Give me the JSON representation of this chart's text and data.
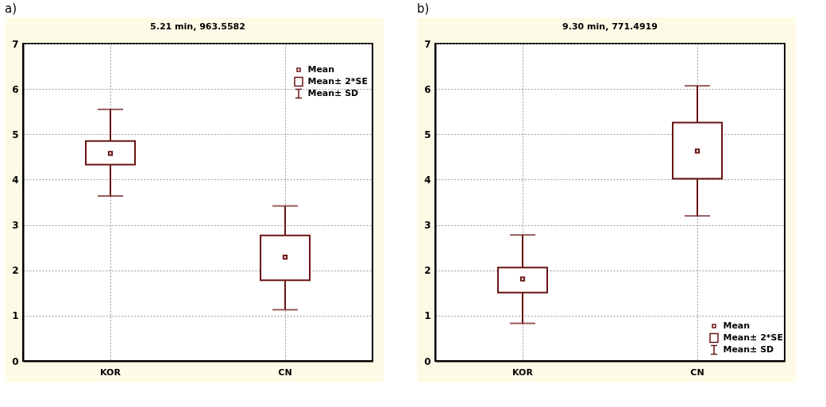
{
  "chart_data": [
    {
      "type": "box",
      "subtitle": "a)",
      "title": "5.21 min, 963.5582",
      "categories": [
        "KOR",
        "CN"
      ],
      "color": "#6b1414",
      "boxes": [
        {
          "low": 3.64,
          "q1": 4.33,
          "q3": 4.85,
          "high": 5.55,
          "mean": 4.58
        },
        {
          "low": 1.13,
          "q1": 1.78,
          "q3": 2.77,
          "high": 3.42,
          "mean": 2.29
        }
      ],
      "ylim": [
        0,
        7
      ],
      "yticks": [
        0,
        1,
        2,
        3,
        4,
        5,
        6,
        7
      ],
      "grid": true,
      "annotations": [
        "Mean",
        "Mean± 2*SE",
        "Mean± SD"
      ]
    },
    {
      "type": "box",
      "subtitle": "b)",
      "title": "9.30 min, 771.4919",
      "categories": [
        "KOR",
        "CN"
      ],
      "color": "#6b1414",
      "boxes": [
        {
          "low": 0.83,
          "q1": 1.51,
          "q3": 2.06,
          "high": 2.78,
          "mean": 1.81
        },
        {
          "low": 3.2,
          "q1": 4.02,
          "q3": 5.26,
          "high": 6.07,
          "mean": 4.63
        }
      ],
      "ylim": [
        0,
        7
      ],
      "yticks": [
        0,
        1,
        2,
        3,
        4,
        5,
        6,
        7
      ],
      "grid": true,
      "annotations": [
        "Mean",
        "Mean± 2*SE",
        "Mean± SD"
      ]
    }
  ]
}
